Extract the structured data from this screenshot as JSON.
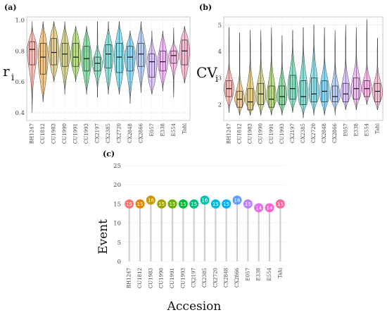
{
  "chart_data": [
    {
      "panel_label": "(a)",
      "type": "violin+box",
      "ylabel": "r",
      "ylabel_subscript": "i",
      "ylim": [
        0.35,
        1.02
      ],
      "yticks": [
        0.4,
        0.6,
        0.8,
        1.0
      ],
      "ytick_labels": [
        "0.4",
        "0.6",
        "0.8",
        "1.0"
      ],
      "grid": true,
      "categories": [
        "BH1247",
        "CU1812",
        "CU1983",
        "CU1990",
        "CU1991",
        "CU1993",
        "CX2197",
        "CX2385",
        "CX2720",
        "CX2848",
        "CX2866",
        "E057",
        "E338",
        "E554",
        "Tahi"
      ],
      "series": [
        {
          "min": 0.4,
          "q1": 0.71,
          "median": 0.81,
          "q3": 0.86,
          "max": 0.99
        },
        {
          "min": 0.47,
          "q1": 0.65,
          "median": 0.76,
          "q3": 0.85,
          "max": 0.99
        },
        {
          "min": 0.6,
          "q1": 0.71,
          "median": 0.79,
          "q3": 0.88,
          "max": 0.99
        },
        {
          "min": 0.52,
          "q1": 0.7,
          "median": 0.78,
          "q3": 0.85,
          "max": 0.99
        },
        {
          "min": 0.6,
          "q1": 0.7,
          "median": 0.76,
          "q3": 0.85,
          "max": 0.96
        },
        {
          "min": 0.52,
          "q1": 0.67,
          "median": 0.75,
          "q3": 0.83,
          "max": 0.96
        },
        {
          "min": 0.5,
          "q1": 0.67,
          "median": 0.72,
          "q3": 0.76,
          "max": 0.99
        },
        {
          "min": 0.52,
          "q1": 0.69,
          "median": 0.78,
          "q3": 0.84,
          "max": 0.99
        },
        {
          "min": 0.52,
          "q1": 0.66,
          "median": 0.76,
          "q3": 0.85,
          "max": 0.99
        },
        {
          "min": 0.46,
          "q1": 0.67,
          "median": 0.76,
          "q3": 0.83,
          "max": 0.93
        },
        {
          "min": 0.53,
          "q1": 0.7,
          "median": 0.78,
          "q3": 0.85,
          "max": 0.99
        },
        {
          "min": 0.52,
          "q1": 0.63,
          "median": 0.73,
          "q3": 0.78,
          "max": 0.93
        },
        {
          "min": 0.54,
          "q1": 0.67,
          "median": 0.73,
          "q3": 0.8,
          "max": 0.93
        },
        {
          "min": 0.5,
          "q1": 0.72,
          "median": 0.77,
          "q3": 0.8,
          "max": 0.95
        },
        {
          "min": 0.59,
          "q1": 0.71,
          "median": 0.8,
          "q3": 0.87,
          "max": 0.96
        }
      ]
    },
    {
      "panel_label": "(b)",
      "type": "violin+box",
      "ylabel": "CV",
      "ylabel_subscript": "i",
      "ylim": [
        1.4,
        5.3
      ],
      "yticks": [
        2,
        3,
        4,
        5
      ],
      "ytick_labels": [
        "2",
        "3",
        "4",
        "5"
      ],
      "grid": true,
      "categories": [
        "BH1247",
        "CU1812",
        "CU1983",
        "CU1990",
        "CU1991",
        "CU1993",
        "CX2197",
        "CX2385",
        "CX2720",
        "CX2848",
        "CX2866",
        "E057",
        "E338",
        "E554",
        "Tahi"
      ],
      "series": [
        {
          "min": 1.7,
          "q1": 2.3,
          "median": 2.6,
          "q3": 2.9,
          "max": 4.9
        },
        {
          "min": 1.6,
          "q1": 1.9,
          "median": 2.2,
          "q3": 2.5,
          "max": 4.7
        },
        {
          "min": 1.6,
          "q1": 1.8,
          "median": 2.1,
          "q3": 2.6,
          "max": 4.8
        },
        {
          "min": 1.6,
          "q1": 2.0,
          "median": 2.4,
          "q3": 2.8,
          "max": 4.8
        },
        {
          "min": 1.6,
          "q1": 1.9,
          "median": 2.2,
          "q3": 2.7,
          "max": 4.9
        },
        {
          "min": 1.6,
          "q1": 2.0,
          "median": 2.3,
          "q3": 2.7,
          "max": 4.6
        },
        {
          "min": 1.7,
          "q1": 2.2,
          "median": 2.6,
          "q3": 3.1,
          "max": 4.8
        },
        {
          "min": 1.5,
          "q1": 2.0,
          "median": 2.3,
          "q3": 2.9,
          "max": 4.9
        },
        {
          "min": 1.6,
          "q1": 2.1,
          "median": 2.4,
          "q3": 3.0,
          "max": 5.0
        },
        {
          "min": 1.6,
          "q1": 2.1,
          "median": 2.5,
          "q3": 2.9,
          "max": 4.9
        },
        {
          "min": 1.6,
          "q1": 2.1,
          "median": 2.3,
          "q3": 2.7,
          "max": 4.8
        },
        {
          "min": 1.8,
          "q1": 2.1,
          "median": 2.4,
          "q3": 2.8,
          "max": 5.0
        },
        {
          "min": 1.8,
          "q1": 2.2,
          "median": 2.6,
          "q3": 3.0,
          "max": 4.9
        },
        {
          "min": 2.0,
          "q1": 2.3,
          "median": 2.6,
          "q3": 2.9,
          "max": 5.2
        },
        {
          "min": 1.8,
          "q1": 2.1,
          "median": 2.5,
          "q3": 2.8,
          "max": 4.5
        }
      ]
    },
    {
      "panel_label": "(c)",
      "type": "lollipop",
      "xlabel": "Accesion",
      "ylabel": "Event",
      "ylim": [
        0,
        25
      ],
      "yticks": [
        0,
        5,
        10,
        15,
        20,
        25
      ],
      "ytick_labels": [
        "0",
        "5",
        "10",
        "15",
        "20",
        "25"
      ],
      "grid": true,
      "categories": [
        "BH1247",
        "CU1812",
        "CU1983",
        "CU1990",
        "CU1991",
        "CU1993",
        "CX2197",
        "CX2385",
        "CX2720",
        "CX2848",
        "CX2866",
        "E057",
        "E338",
        "E554",
        "Tahi"
      ],
      "values": [
        15,
        15,
        16,
        15,
        15,
        15,
        15,
        16,
        15,
        15,
        16,
        15,
        14,
        14,
        15
      ],
      "value_labels": [
        "15",
        "15",
        "16",
        "15",
        "15",
        "15",
        "15",
        "16",
        "15",
        "15",
        "16",
        "15",
        "14",
        "14",
        "15"
      ]
    }
  ],
  "colors": [
    "#F8766D",
    "#E58700",
    "#C99800",
    "#A3A500",
    "#6BB100",
    "#00BA38",
    "#00BF7D",
    "#00C0AF",
    "#00BCD8",
    "#00B0F6",
    "#619CFF",
    "#B983FF",
    "#E76BF3",
    "#FD61D1",
    "#FF67A4"
  ]
}
